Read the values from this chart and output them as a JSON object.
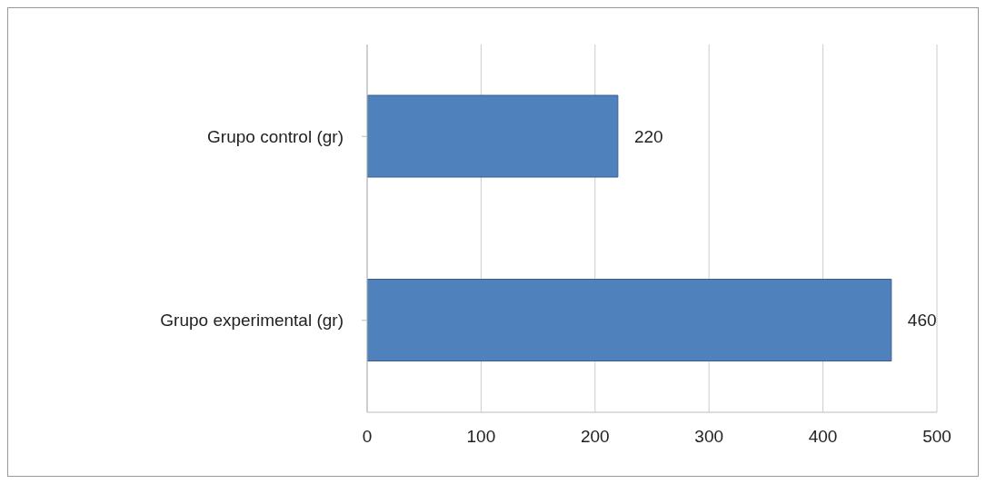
{
  "chart_data": {
    "type": "bar",
    "orientation": "horizontal",
    "categories": [
      "Grupo control (gr)",
      "Grupo experimental (gr)"
    ],
    "values": [
      220,
      460
    ],
    "color": "#4f81bd",
    "xlim": [
      0,
      500
    ],
    "xticks": [
      0,
      100,
      200,
      300,
      400,
      500
    ],
    "grid": "x",
    "data_labels": true
  }
}
